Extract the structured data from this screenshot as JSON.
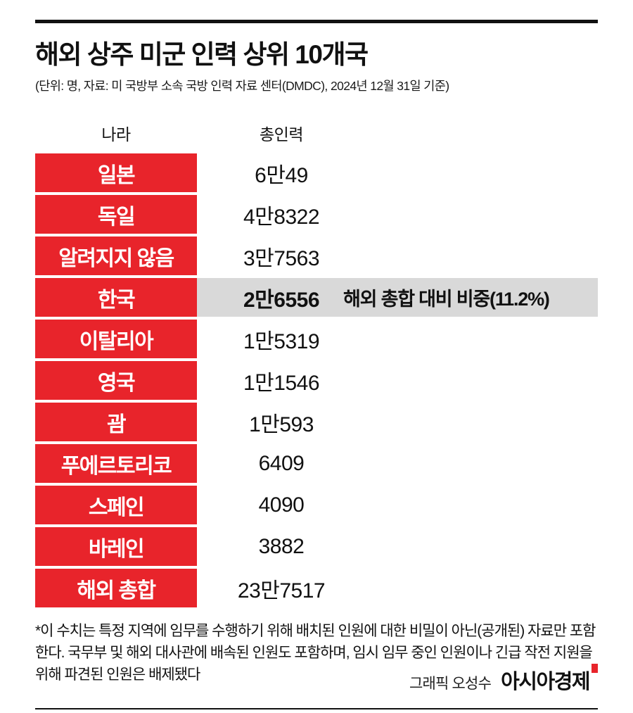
{
  "header": {
    "title": "해외 상주 미군 인력 상위 10개국",
    "subtitle": "(단위: 명, 자료: 미 국방부 소속 국방 인력 자료 센터(DMDC), 2024년 12월 31일 기준)"
  },
  "table": {
    "columns": [
      "나라",
      "총인력"
    ],
    "rows": [
      {
        "country": "일본",
        "value": "6만49",
        "highlight": false,
        "note": ""
      },
      {
        "country": "독일",
        "value": "4만8322",
        "highlight": false,
        "note": ""
      },
      {
        "country": "알려지지 않음",
        "value": "3만7563",
        "highlight": false,
        "note": ""
      },
      {
        "country": "한국",
        "value": "2만6556",
        "highlight": true,
        "note": "해외 총합 대비 비중(11.2%)"
      },
      {
        "country": "이탈리아",
        "value": "1만5319",
        "highlight": false,
        "note": ""
      },
      {
        "country": "영국",
        "value": "1만1546",
        "highlight": false,
        "note": ""
      },
      {
        "country": "괌",
        "value": "1만593",
        "highlight": false,
        "note": ""
      },
      {
        "country": "푸에르토리코",
        "value": "6409",
        "highlight": false,
        "note": ""
      },
      {
        "country": "스페인",
        "value": "4090",
        "highlight": false,
        "note": ""
      },
      {
        "country": "바레인",
        "value": "3882",
        "highlight": false,
        "note": ""
      },
      {
        "country": "해외 총합",
        "value": "23만7517",
        "highlight": false,
        "note": ""
      }
    ]
  },
  "footnote": "*이 수치는 특정 지역에 임무를 수행하기 위해 배치된 인원에 대한 비밀이 아닌(공개된) 자료만 포함한다. 국무부 및 해외 대사관에 배속된 인원도 포함하며, 임시 임무 중인 인원이나 긴급 작전 지원을 위해 파견된 인원은 배제됐다",
  "credit": {
    "graphic": "그래픽 오성수",
    "brand": "아시아경제"
  },
  "colors": {
    "red": "#e8242b",
    "highlight_gray": "#d9d9d9",
    "rule_black": "#111111"
  },
  "chart_data": {
    "type": "table",
    "title": "해외 상주 미군 인력 상위 10개국",
    "unit": "명",
    "source": "미 국방부 소속 국방 인력 자료 센터(DMDC), 2024년 12월 31일 기준",
    "columns": [
      "나라",
      "총인력"
    ],
    "rows": [
      [
        "일본",
        60049
      ],
      [
        "독일",
        48322
      ],
      [
        "알려지지 않음",
        37563
      ],
      [
        "한국",
        26556
      ],
      [
        "이탈리아",
        15319
      ],
      [
        "영국",
        11546
      ],
      [
        "괌",
        10593
      ],
      [
        "푸에르토리코",
        6409
      ],
      [
        "스페인",
        4090
      ],
      [
        "바레인",
        3882
      ],
      [
        "해외 총합",
        237517
      ]
    ],
    "annotations": [
      "한국 행 강조: 해외 총합 대비 비중(11.2%)"
    ]
  }
}
